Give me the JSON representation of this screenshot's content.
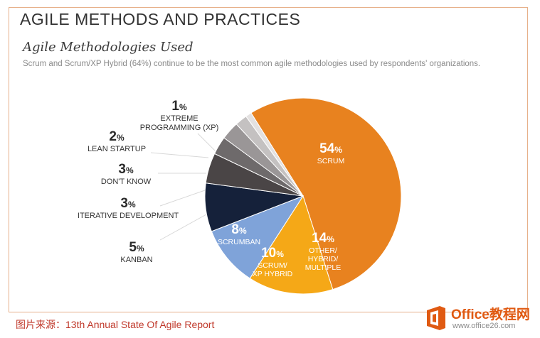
{
  "header": {
    "title": "AGILE METHODS AND PRACTICES",
    "subtitle": "Agile Methodologies Used",
    "description": "Scrum and Scrum/XP Hybrid (64%) continue to be the most common agile methodologies used by respondents' organizations."
  },
  "chart_data": {
    "type": "pie",
    "title": "Agile Methodologies Used",
    "unit": "%",
    "slices": [
      {
        "label": "SCRUM",
        "label_lines": [
          "SCRUM"
        ],
        "value": 54,
        "color": "#e8821f"
      },
      {
        "label": "OTHER/ HYBRID/ MULTIPLE",
        "label_lines": [
          "OTHER/",
          "HYBRID/",
          "MULTIPLE"
        ],
        "value": 14,
        "color": "#f5a817"
      },
      {
        "label": "SCRUM/ XP HYBRID",
        "label_lines": [
          "SCRUM/",
          "XP HYBRID"
        ],
        "value": 10,
        "color": "#7fa3d9"
      },
      {
        "label": "SCRUMBAN",
        "label_lines": [
          "SCRUMBAN"
        ],
        "value": 8,
        "color": "#15213a"
      },
      {
        "label": "KANBAN",
        "label_lines": [
          "KANBAN"
        ],
        "value": 5,
        "color": "#4a4546"
      },
      {
        "label": "ITERATIVE DEVELOPMENT",
        "label_lines": [
          "ITERATIVE DEVELOPMENT"
        ],
        "value": 3,
        "color": "#6e6a6b"
      },
      {
        "label": "DON'T KNOW",
        "label_lines": [
          "DON'T KNOW"
        ],
        "value": 3,
        "color": "#9a9697"
      },
      {
        "label": "LEAN STARTUP",
        "label_lines": [
          "LEAN STARTUP"
        ],
        "value": 2,
        "color": "#c4c1c1"
      },
      {
        "label": "EXTREME PROGRAMMING (XP)",
        "label_lines": [
          "EXTREME",
          "PROGRAMMING (XP)"
        ],
        "value": 1,
        "color": "#e3e1e1"
      }
    ]
  },
  "labels": {
    "scrum": {
      "pct": "54",
      "name": "SCRUM"
    },
    "other": {
      "pct": "14",
      "name": "OTHER/\nHYBRID/\nMULTIPLE"
    },
    "scrum_xp": {
      "pct": "10",
      "name": "SCRUM/\nXP HYBRID"
    },
    "scrumban": {
      "pct": "8",
      "name": "SCRUMBAN"
    },
    "kanban": {
      "pct": "5",
      "name": "KANBAN"
    },
    "iterative": {
      "pct": "3",
      "name": "ITERATIVE DEVELOPMENT"
    },
    "dont_know": {
      "pct": "3",
      "name": "DON'T KNOW"
    },
    "lean": {
      "pct": "2",
      "name": "LEAN STARTUP"
    },
    "xp": {
      "pct": "1",
      "name": "EXTREME\nPROGRAMMING (XP)"
    },
    "pct_sign": "%"
  },
  "footer": {
    "source": "图片来源：13th Annual State Of Agile Report"
  },
  "logo": {
    "brand": "Office教程网",
    "url": "www.office26.com",
    "accent_color": "#e05a12"
  }
}
